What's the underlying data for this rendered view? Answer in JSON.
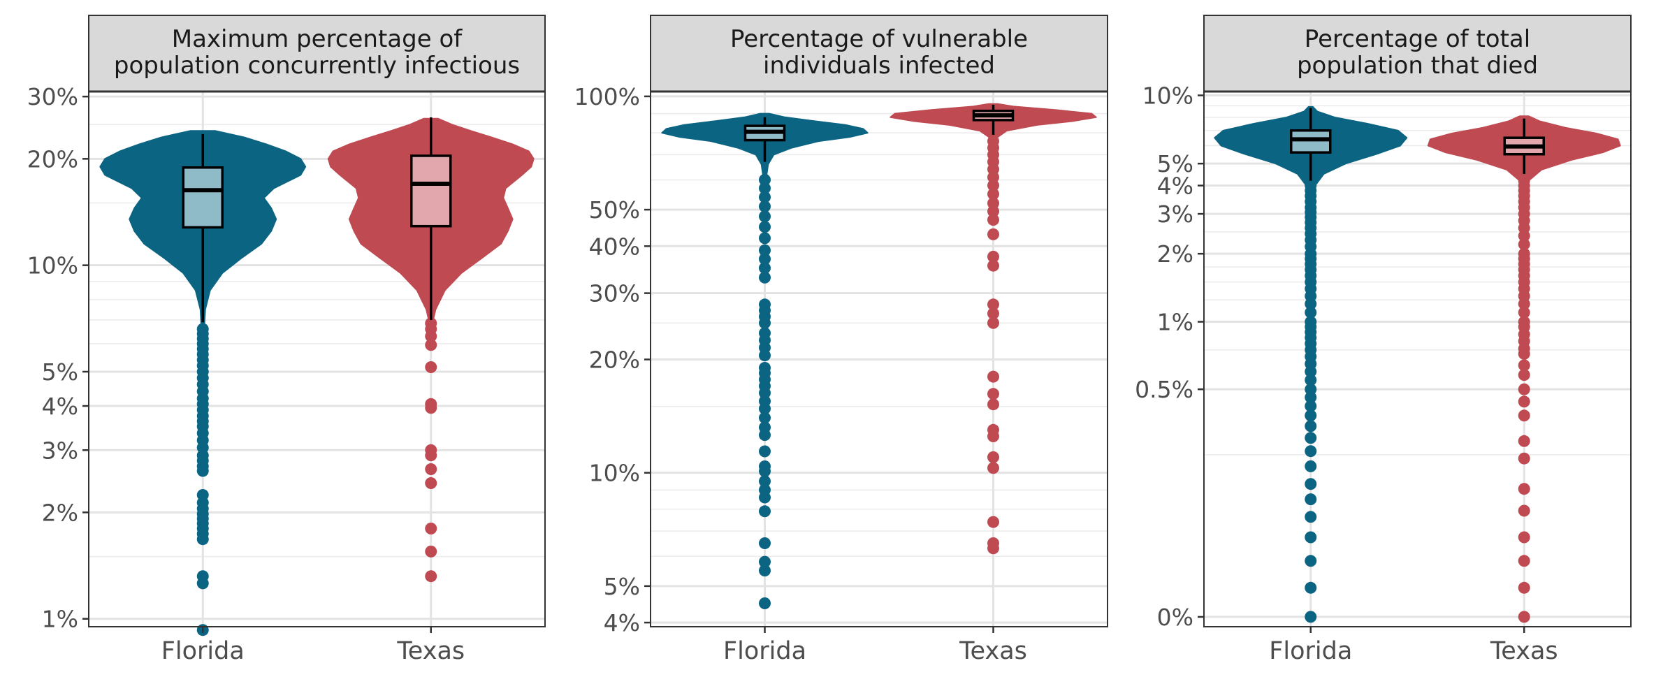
{
  "chart_data": [
    {
      "type": "violin",
      "title": "Maximum percentage of\npopulation concurrently infectious",
      "scale": "log",
      "ylim": [
        0.95,
        31
      ],
      "yticks": [
        1,
        2,
        3,
        4,
        5,
        10,
        20,
        30
      ],
      "ytick_labels": [
        "1%",
        "2%",
        "3%",
        "4%",
        "5%",
        "10%",
        "20%",
        "30%"
      ],
      "minor_gridlines": [
        1.5,
        6,
        7,
        8,
        9,
        15,
        25
      ],
      "categories": [
        "Florida",
        "Texas"
      ],
      "series": [
        {
          "name": "Florida",
          "fill": "#0b6482",
          "box_fill": "#8fbac8",
          "profile": [
            [
              6.5,
              0.005
            ],
            [
              7.5,
              0.01
            ],
            [
              8.5,
              0.03
            ],
            [
              9.5,
              0.08
            ],
            [
              10.5,
              0.16
            ],
            [
              11.5,
              0.24
            ],
            [
              12.5,
              0.28
            ],
            [
              13.5,
              0.3
            ],
            [
              14.5,
              0.28
            ],
            [
              15.5,
              0.25
            ],
            [
              16.5,
              0.29
            ],
            [
              18,
              0.4
            ],
            [
              19,
              0.42
            ],
            [
              20,
              0.4
            ],
            [
              21,
              0.34
            ],
            [
              22,
              0.26
            ],
            [
              23,
              0.17
            ],
            [
              24,
              0.05
            ]
          ],
          "box": {
            "q1": 12.8,
            "median": 16.3,
            "q3": 18.9,
            "whisker_low": 6.9,
            "whisker_high": 23.5
          },
          "outliers": [
            0.93,
            1.26,
            1.32,
            1.68,
            1.74,
            1.8,
            1.86,
            1.92,
            1.98,
            2.05,
            2.13,
            2.24,
            2.62,
            2.7,
            2.8,
            2.9,
            3.05,
            3.2,
            3.35,
            3.5,
            3.62,
            3.75,
            3.9,
            4.05,
            4.2,
            4.4,
            4.6,
            4.8,
            5.0,
            5.2,
            5.4,
            5.6,
            5.8,
            6.0,
            6.2,
            6.4,
            6.6
          ]
        },
        {
          "name": "Texas",
          "fill": "#bf4a52",
          "box_fill": "#e1a7ad",
          "profile": [
            [
              6.8,
              0.005
            ],
            [
              7.5,
              0.02
            ],
            [
              8.5,
              0.06
            ],
            [
              9.5,
              0.13
            ],
            [
              10.5,
              0.22
            ],
            [
              11.5,
              0.3
            ],
            [
              12.5,
              0.33
            ],
            [
              13.5,
              0.35
            ],
            [
              14.5,
              0.33
            ],
            [
              15.5,
              0.31
            ],
            [
              16.5,
              0.32
            ],
            [
              18,
              0.39
            ],
            [
              19,
              0.43
            ],
            [
              20,
              0.44
            ],
            [
              21,
              0.42
            ],
            [
              22,
              0.35
            ],
            [
              23,
              0.26
            ],
            [
              24,
              0.17
            ],
            [
              25,
              0.09
            ],
            [
              26,
              0.03
            ]
          ],
          "box": {
            "q1": 12.9,
            "median": 17.0,
            "q3": 20.4,
            "whisker_low": 7.0,
            "whisker_high": 26.2
          },
          "outliers": [
            1.32,
            1.55,
            1.8,
            2.42,
            2.65,
            2.9,
            3.0,
            3.95,
            4.05,
            5.15,
            5.95,
            6.3,
            6.6,
            6.85
          ]
        }
      ]
    },
    {
      "type": "violin",
      "title": "Percentage of vulnerable\nindividuals infected",
      "scale": "log",
      "ylim": [
        3.9,
        103
      ],
      "yticks": [
        4,
        5,
        10,
        20,
        30,
        40,
        50,
        100
      ],
      "ytick_labels": [
        "4%",
        "5%",
        "10%",
        "20%",
        "30%",
        "40%",
        "50%",
        "100%"
      ],
      "minor_gridlines": [
        6,
        7,
        8,
        9,
        15,
        25,
        60,
        70,
        80,
        90
      ],
      "categories": [
        "Florida",
        "Texas"
      ],
      "series": [
        {
          "name": "Florida",
          "fill": "#0b6482",
          "box_fill": "#8fbac8",
          "profile": [
            [
              60,
              0.005
            ],
            [
              66,
              0.015
            ],
            [
              70,
              0.04
            ],
            [
              73,
              0.12
            ],
            [
              76,
              0.24
            ],
            [
              78,
              0.38
            ],
            [
              80,
              0.46
            ],
            [
              82,
              0.44
            ],
            [
              84,
              0.36
            ],
            [
              86,
              0.22
            ],
            [
              88,
              0.09
            ],
            [
              90,
              0.02
            ]
          ],
          "box": {
            "q1": 76.5,
            "median": 80.5,
            "q3": 83.5,
            "whisker_low": 67,
            "whisker_high": 88
          },
          "outliers": [
            4.5,
            5.5,
            5.8,
            6.5,
            7.9,
            8.6,
            9.0,
            9.5,
            10.1,
            10.4,
            11.4,
            12.6,
            13.2,
            14.0,
            14.8,
            15.5,
            16.3,
            17.0,
            17.7,
            18.4,
            19.0,
            20.5,
            21.5,
            22.5,
            23.5,
            25.0,
            26.0,
            27.0,
            28.0,
            33,
            35,
            37,
            39,
            42,
            45,
            48,
            51,
            54,
            57,
            60
          ]
        },
        {
          "name": "Texas",
          "fill": "#bf4a52",
          "box_fill": "#e1a7ad",
          "profile": [
            [
              73,
              0.005
            ],
            [
              78,
              0.02
            ],
            [
              81,
              0.06
            ],
            [
              84,
              0.2
            ],
            [
              86,
              0.36
            ],
            [
              88,
              0.46
            ],
            [
              90,
              0.44
            ],
            [
              92,
              0.28
            ],
            [
              94,
              0.09
            ],
            [
              95.5,
              0.02
            ]
          ],
          "box": {
            "q1": 86.5,
            "median": 89.0,
            "q3": 91.5,
            "whisker_low": 79,
            "whisker_high": 95
          },
          "outliers": [
            6.3,
            6.5,
            7.4,
            10.3,
            11.0,
            12.5,
            13.0,
            15.2,
            16.2,
            18.0,
            25.0,
            26.5,
            28.0,
            35.5,
            37.5,
            43.0,
            47.0,
            49.5,
            52,
            55,
            58,
            61,
            64,
            67,
            70,
            73,
            76
          ]
        }
      ]
    },
    {
      "type": "violin",
      "title": "Percentage of total\npopulation that died",
      "scale": "pseudo-log",
      "ylim": [
        -0.01,
        10.4
      ],
      "yticks": [
        0,
        0.5,
        1,
        2,
        3,
        4,
        5,
        10
      ],
      "ytick_labels": [
        "0%",
        "0.5%",
        "1%",
        "2%",
        "3%",
        "4%",
        "5%",
        "10%"
      ],
      "minor_gridlines": [
        0.25,
        0.75,
        1.25,
        1.5,
        1.75,
        2.5,
        6,
        7,
        8,
        9
      ],
      "categories": [
        "Florida",
        "Texas"
      ],
      "series": [
        {
          "name": "Florida",
          "fill": "#0b6482",
          "box_fill": "#8fbac8",
          "profile": [
            [
              3.6,
              0.005
            ],
            [
              4.0,
              0.02
            ],
            [
              4.5,
              0.06
            ],
            [
              5.0,
              0.16
            ],
            [
              5.5,
              0.3
            ],
            [
              6.0,
              0.41
            ],
            [
              6.5,
              0.44
            ],
            [
              7.0,
              0.4
            ],
            [
              7.5,
              0.26
            ],
            [
              8.0,
              0.11
            ],
            [
              8.5,
              0.03
            ],
            [
              8.9,
              0.01
            ]
          ],
          "box": {
            "q1": 5.6,
            "median": 6.4,
            "q3": 7.0,
            "whisker_low": 4.2,
            "whisker_high": 8.8
          },
          "outliers": [
            0,
            0.03,
            0.06,
            0.09,
            0.12,
            0.15,
            0.18,
            0.22,
            0.26,
            0.3,
            0.34,
            0.38,
            0.42,
            0.46,
            0.5,
            0.55,
            0.6,
            0.65,
            0.7,
            0.75,
            0.8,
            0.85,
            0.9,
            0.95,
            1.0,
            1.1,
            1.2,
            1.3,
            1.4,
            1.5,
            1.6,
            1.7,
            1.8,
            1.9,
            2.0,
            2.15,
            2.3,
            2.45,
            2.6,
            2.75,
            2.9,
            3.05,
            3.2,
            3.4,
            3.6,
            3.8,
            4.0
          ]
        },
        {
          "name": "Texas",
          "fill": "#bf4a52",
          "box_fill": "#e1a7ad",
          "profile": [
            [
              3.8,
              0.005
            ],
            [
              4.2,
              0.02
            ],
            [
              4.7,
              0.08
            ],
            [
              5.2,
              0.22
            ],
            [
              5.6,
              0.36
            ],
            [
              6.0,
              0.44
            ],
            [
              6.4,
              0.43
            ],
            [
              6.8,
              0.33
            ],
            [
              7.2,
              0.19
            ],
            [
              7.7,
              0.07
            ],
            [
              8.1,
              0.02
            ]
          ],
          "box": {
            "q1": 5.5,
            "median": 5.95,
            "q3": 6.5,
            "whisker_low": 4.5,
            "whisker_high": 7.9
          },
          "outliers": [
            0,
            0.03,
            0.06,
            0.09,
            0.13,
            0.17,
            0.24,
            0.29,
            0.38,
            0.44,
            0.5,
            0.58,
            0.64,
            0.72,
            0.76,
            0.82,
            0.88,
            0.95,
            1.0,
            1.1,
            1.2,
            1.3,
            1.4,
            1.5,
            1.6,
            1.7,
            1.8,
            1.9,
            2.0,
            2.2,
            2.4,
            2.6,
            2.8,
            3.0,
            3.2,
            3.4,
            3.6,
            3.8,
            4.0,
            4.2
          ]
        }
      ]
    }
  ]
}
